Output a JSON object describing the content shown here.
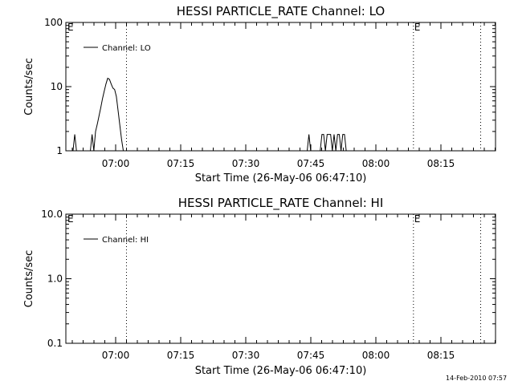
{
  "chart_data": [
    {
      "type": "line",
      "title": "HESSI PARTICLE_RATE Channel: LO",
      "xlabel": "Start Time (26-May-06 06:47:10)",
      "ylabel": "Counts/sec",
      "yscale": "log",
      "ylim": [
        1,
        100
      ],
      "ytick_labels": [
        "1",
        "10",
        "100"
      ],
      "x_tick_labels": [
        "07:00",
        "07:15",
        "07:30",
        "07:45",
        "08:00",
        "08:15"
      ],
      "xlim_minutes_after_0647": [
        0,
        100
      ],
      "legend": "top-left",
      "series": [
        {
          "name": "Channel: LO",
          "x_minutes_after_0647": [
            3,
            3.4,
            3.8,
            4.2,
            7,
            7.4,
            7.8,
            8.2,
            8.6,
            9.0,
            9.4,
            9.8,
            10.2,
            10.6,
            11.0,
            11.4,
            11.8,
            12.2,
            12.6,
            13.0,
            13.4,
            13.8,
            14.2,
            14.6,
            15.0,
            15.4,
            15.8,
            16.2,
            16.6,
            57,
            57.4,
            57.8,
            58.2,
            60,
            60.4,
            60.8,
            61.2,
            61.6,
            62.0,
            62.4,
            62.8,
            63.2,
            63.6,
            64.0,
            64.4,
            64.8,
            65.2,
            65.6,
            66.0,
            66.4,
            66.8
          ],
          "y_counts_per_sec": [
            1,
            1.8,
            1,
            1,
            1,
            1.8,
            1,
            2,
            2.6,
            3.5,
            4.7,
            6.5,
            8.5,
            11,
            13.5,
            13,
            11,
            9.5,
            9,
            7,
            4.2,
            2.5,
            1.5,
            1,
            1,
            1,
            1,
            1,
            1,
            1,
            1.8,
            1,
            1,
            1,
            1.8,
            1.8,
            1,
            1.8,
            1.8,
            1.8,
            1,
            1.8,
            1,
            1.8,
            1.8,
            1,
            1.8,
            1.8,
            1,
            1,
            1
          ]
        }
      ],
      "markers": [
        {
          "label": "E",
          "x_minutes_after_0647": 0
        },
        {
          "label": "E",
          "x_minutes_after_0647": 81.5
        }
      ],
      "vlines_dotted_minutes_after_0647": [
        15.33,
        81.5,
        97
      ]
    },
    {
      "type": "line",
      "title": "HESSI PARTICLE_RATE Channel: HI",
      "xlabel": "Start Time (26-May-06 06:47:10)",
      "ylabel": "Counts/sec",
      "yscale": "log",
      "ylim": [
        0.1,
        10
      ],
      "ytick_labels": [
        "0.1",
        "1.0",
        "10.0"
      ],
      "x_tick_labels": [
        "07:00",
        "07:15",
        "07:30",
        "07:45",
        "08:00",
        "08:15"
      ],
      "xlim_minutes_after_0647": [
        0,
        100
      ],
      "legend": "top-left",
      "series": [
        {
          "name": "Channel: HI",
          "x_minutes_after_0647": [],
          "y_counts_per_sec": []
        }
      ],
      "markers": [
        {
          "label": "E",
          "x_minutes_after_0647": 0
        },
        {
          "label": "E",
          "x_minutes_after_0647": 81.5
        }
      ],
      "vlines_dotted_minutes_after_0647": [
        15.33,
        81.5,
        97
      ]
    }
  ],
  "footer": {
    "timestamp": "14-Feb-2010 07:57"
  }
}
